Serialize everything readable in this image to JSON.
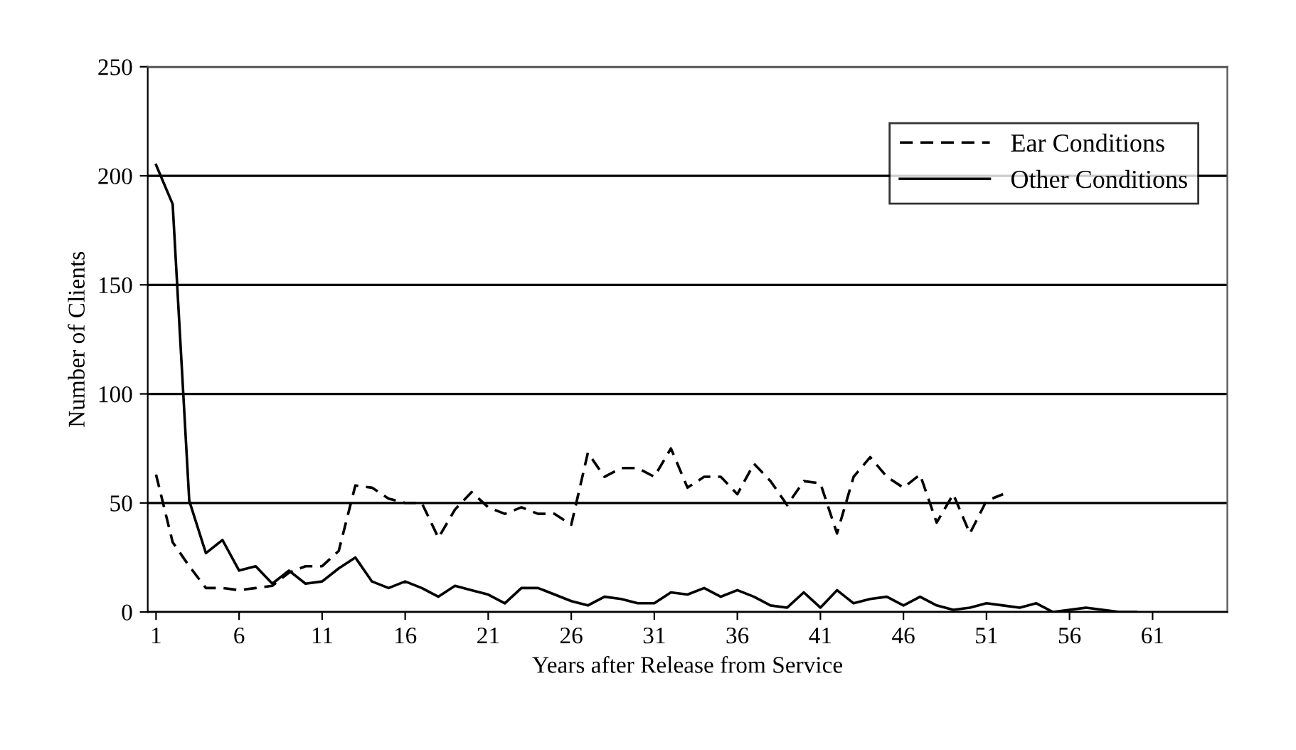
{
  "chart_data": {
    "type": "line",
    "xlabel": "Years after Release from Service",
    "ylabel": "Number of Clients",
    "xlim": [
      0.5,
      65.5
    ],
    "xticks": [
      1,
      6,
      11,
      16,
      21,
      26,
      31,
      36,
      41,
      46,
      51,
      56,
      61
    ],
    "ylim": [
      0,
      250
    ],
    "yticks": [
      0,
      50,
      100,
      150,
      200,
      250
    ],
    "grid": "y",
    "legend": "top right",
    "marker": "none",
    "series": [
      {
        "name": "Ear Conditions",
        "color": "#000000",
        "line_style": "dashed",
        "x": [
          1,
          2,
          3,
          4,
          5,
          6,
          7,
          8,
          9,
          10,
          11,
          12,
          13,
          14,
          15,
          16,
          17,
          18,
          19,
          20,
          21,
          22,
          23,
          24,
          25,
          26,
          27,
          28,
          29,
          30,
          31,
          32,
          33,
          34,
          35,
          36,
          37,
          38,
          39,
          40,
          41,
          42,
          43,
          44,
          45,
          46,
          47,
          48,
          49,
          50,
          51,
          52
        ],
        "values": [
          63,
          32,
          21,
          11,
          11,
          10,
          11,
          12,
          18,
          21,
          21,
          28,
          58,
          57,
          52,
          50,
          50,
          34,
          47,
          55,
          48,
          45,
          48,
          45,
          45,
          40,
          73,
          62,
          66,
          66,
          62,
          75,
          57,
          62,
          62,
          54,
          68,
          60,
          49,
          60,
          59,
          36,
          62,
          71,
          62,
          57,
          63,
          41,
          54,
          36,
          51,
          54
        ]
      },
      {
        "name": "Other Conditions",
        "color": "#000000",
        "line_style": "solid",
        "x": [
          1,
          2,
          3,
          4,
          5,
          6,
          7,
          8,
          9,
          10,
          11,
          12,
          13,
          14,
          15,
          16,
          17,
          18,
          19,
          20,
          21,
          22,
          23,
          24,
          25,
          26,
          27,
          28,
          29,
          30,
          31,
          32,
          33,
          34,
          35,
          36,
          37,
          38,
          39,
          40,
          41,
          42,
          43,
          44,
          45,
          46,
          47,
          48,
          49,
          50,
          51,
          52,
          53,
          54,
          55,
          56,
          57,
          58,
          59,
          60
        ],
        "values": [
          205,
          187,
          51,
          27,
          33,
          19,
          21,
          13,
          19,
          13,
          14,
          20,
          25,
          14,
          11,
          14,
          11,
          7,
          12,
          10,
          8,
          4,
          11,
          11,
          8,
          5,
          3,
          7,
          6,
          4,
          4,
          9,
          8,
          11,
          7,
          10,
          7,
          3,
          2,
          9,
          2,
          10,
          4,
          6,
          7,
          3,
          7,
          3,
          1,
          2,
          4,
          3,
          2,
          4,
          0,
          1,
          2,
          1,
          0,
          0
        ]
      }
    ]
  }
}
